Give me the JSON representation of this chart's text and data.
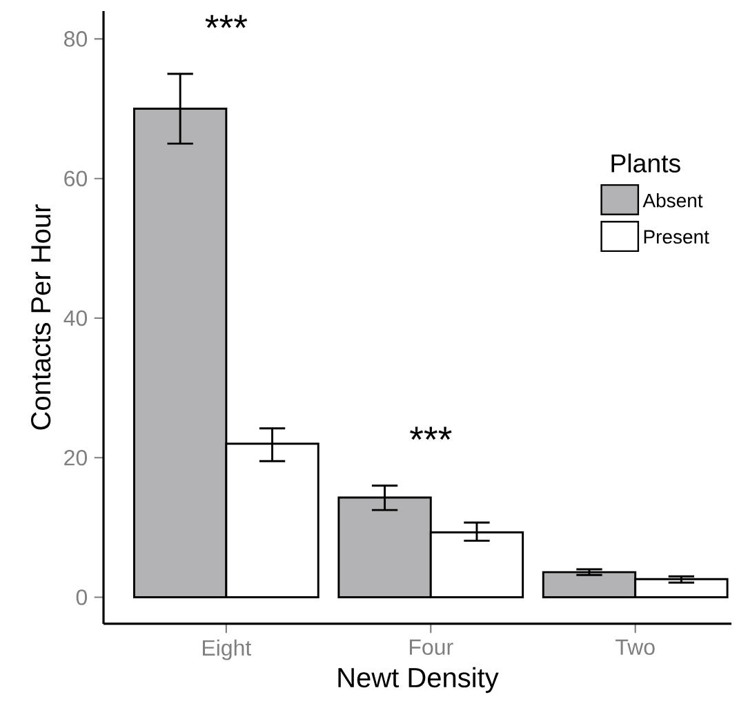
{
  "chart_data": {
    "type": "bar",
    "xlabel": "Newt Density",
    "ylabel": "Contacts Per Hour",
    "legend_title": "Plants",
    "categories": [
      "Eight",
      "Four",
      "Two"
    ],
    "series": [
      {
        "name": "Absent",
        "color": "#b3b3b5",
        "values": [
          70,
          14.3,
          3.6
        ],
        "errors": [
          [
            65,
            75
          ],
          [
            12.5,
            16
          ],
          [
            3.2,
            4
          ]
        ]
      },
      {
        "name": "Present",
        "color": "#ffffff",
        "values": [
          22,
          9.3,
          2.6
        ],
        "errors": [
          [
            19.5,
            24.2
          ],
          [
            8.1,
            10.7
          ],
          [
            2.1,
            3
          ]
        ]
      }
    ],
    "ylim": [
      -3.8,
      84
    ],
    "yticks": [
      0,
      20,
      40,
      60,
      80
    ],
    "grid": false,
    "legend": "right",
    "annotations": [
      "***",
      "***"
    ]
  }
}
